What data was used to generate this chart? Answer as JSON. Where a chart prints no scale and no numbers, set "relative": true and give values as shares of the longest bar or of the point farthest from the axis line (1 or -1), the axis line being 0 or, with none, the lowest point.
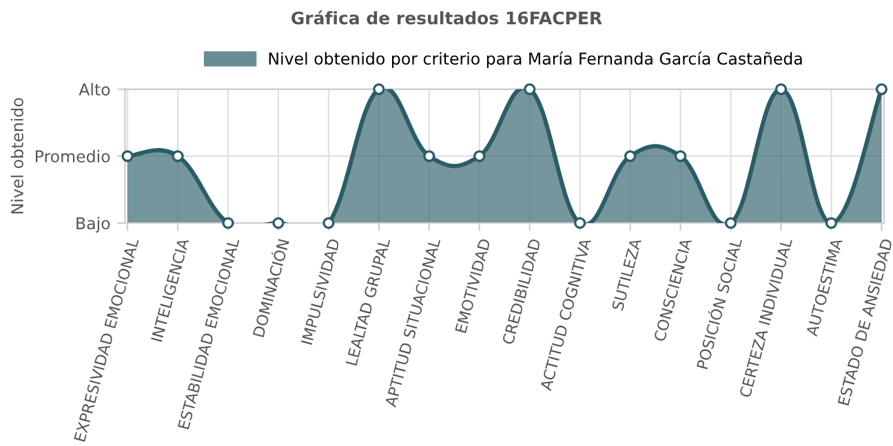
{
  "chart_data": {
    "type": "area",
    "title": "Gráfica de resultados 16FACPER",
    "ylabel": "Nivel obtenido",
    "categories": [
      "EXPRESIVIDAD EMOCIONAL",
      "INTELIGENCIA",
      "ESTABILIDAD EMOCIONAL",
      "DOMINACIÓN",
      "IMPULSIVIDAD",
      "LEALTAD GRUPAL",
      "APTITUD SITUACIONAL",
      "EMOTIVIDAD",
      "CREDIBILIDAD",
      "ACTITUD COGNITIVA",
      "SUTILEZA",
      "CONSCIENCIA",
      "POSICIÓN SOCIAL",
      "CERTEZA INDIVIDUAL",
      "AUTOESTIMA",
      "ESTADO DE ANSIEDAD"
    ],
    "series": [
      {
        "name": "Nivel obtenido por criterio para María Fernanda García Castañeda",
        "color": "#2b5d67",
        "values": [
          0.5,
          0.5,
          0,
          0,
          0,
          1,
          0.5,
          0.5,
          1,
          0,
          0.5,
          0.5,
          0,
          1,
          0,
          1
        ]
      }
    ],
    "relative": true,
    "y_categories": [
      "Alto",
      "Promedio",
      "Bajo"
    ],
    "grid": true,
    "legend": "top",
    "marker": "circle",
    "line_style": "solid"
  }
}
